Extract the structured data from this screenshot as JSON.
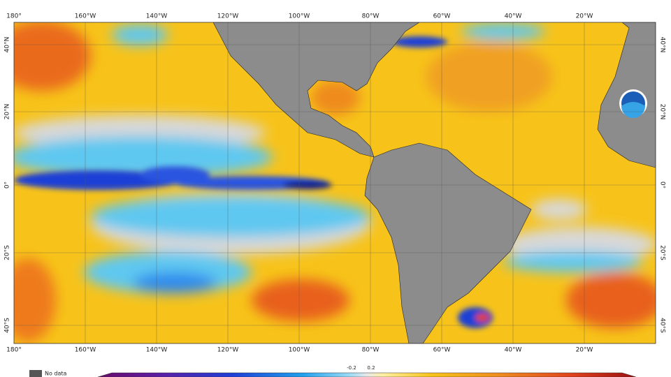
{
  "map": {
    "lon_labels": [
      "180°",
      "160°W",
      "140°W",
      "120°W",
      "100°W",
      "80°W",
      "60°W",
      "40°W",
      "20°W"
    ],
    "lat_labels": [
      "40°N",
      "20°N",
      "0°",
      "20°S",
      "40°S"
    ],
    "legend": {
      "no_data": "No data",
      "ticks": [
        "-0.2",
        "0.2"
      ]
    }
  }
}
